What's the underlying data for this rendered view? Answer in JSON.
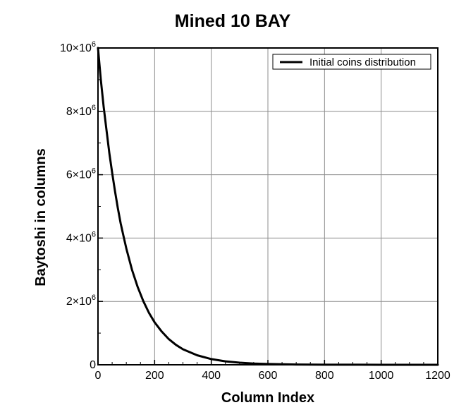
{
  "chart_data": {
    "type": "line",
    "title": "Mined 10 BAY",
    "xlabel": "Column Index",
    "ylabel": "Baytoshi in columns",
    "xlim": [
      0,
      1200
    ],
    "ylim": [
      0,
      10000000
    ],
    "x_ticks": [
      {
        "value": 0,
        "label": "0"
      },
      {
        "value": 200,
        "label": "200"
      },
      {
        "value": 400,
        "label": "400"
      },
      {
        "value": 600,
        "label": "600"
      },
      {
        "value": 800,
        "label": "800"
      },
      {
        "value": 1000,
        "label": "1000"
      },
      {
        "value": 1200,
        "label": "1200"
      }
    ],
    "y_ticks": [
      {
        "value": 0,
        "mantissa": "0",
        "exponent": ""
      },
      {
        "value": 2000000,
        "mantissa": "2×10",
        "exponent": "6"
      },
      {
        "value": 4000000,
        "mantissa": "4×10",
        "exponent": "6"
      },
      {
        "value": 6000000,
        "mantissa": "6×10",
        "exponent": "6"
      },
      {
        "value": 8000000,
        "mantissa": "8×10",
        "exponent": "6"
      },
      {
        "value": 10000000,
        "mantissa": "10×10",
        "exponent": "6"
      }
    ],
    "grid": true,
    "legend_position": "top-right",
    "series": [
      {
        "name": "Initial coins distribution",
        "color": "#000000",
        "x": [
          0,
          10,
          20,
          30,
          40,
          50,
          60,
          70,
          80,
          90,
          100,
          120,
          140,
          160,
          180,
          200,
          225,
          250,
          275,
          300,
          350,
          400,
          450,
          500,
          550,
          600,
          700,
          800,
          900,
          1000,
          1100,
          1200
        ],
        "y": [
          10000000,
          9000000,
          8150000,
          7400000,
          6680000,
          6060000,
          5480000,
          4950000,
          4470000,
          4060000,
          3670000,
          3000000,
          2460000,
          2010000,
          1640000,
          1340000,
          1050000,
          810000,
          630000,
          490000,
          300000,
          180000,
          110000,
          67000,
          41000,
          25000,
          9000,
          3300,
          1200,
          450,
          170,
          60
        ]
      }
    ]
  }
}
